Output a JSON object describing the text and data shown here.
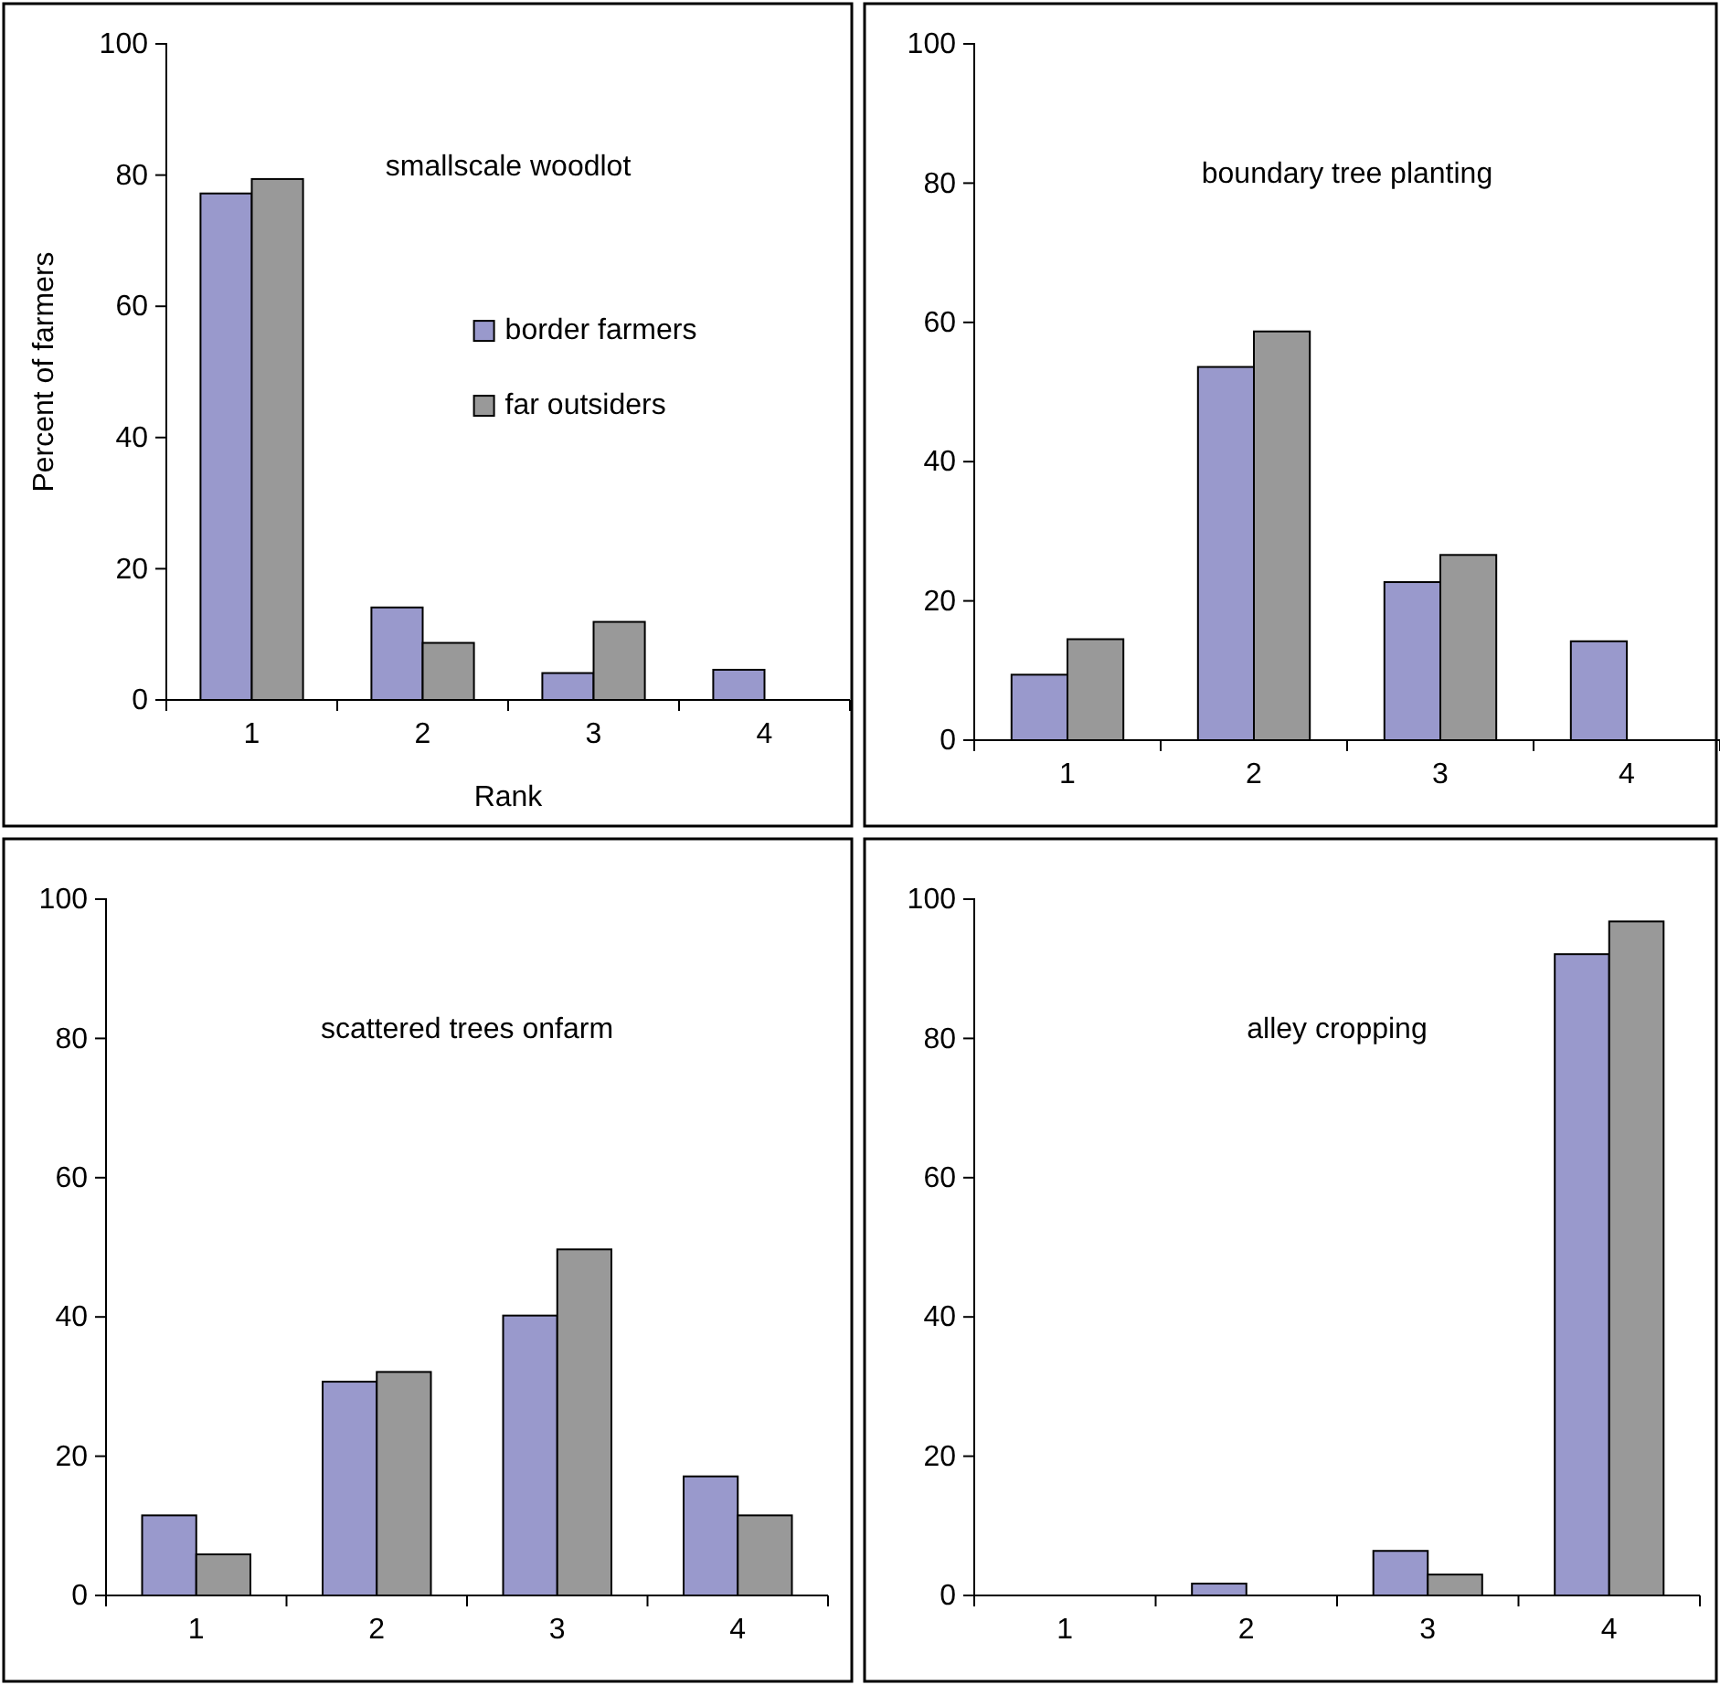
{
  "chart_data": [
    {
      "type": "bar",
      "title": "smallscale woodlot",
      "xlabel": "Rank",
      "ylabel": "Percent of farmers",
      "categories": [
        "1",
        "2",
        "3",
        "4"
      ],
      "series": [
        {
          "name": "border farmers",
          "color": "#9999cc",
          "values": [
            77.2,
            14.1,
            4.1,
            4.6
          ]
        },
        {
          "name": "far outsiders",
          "color": "#999999",
          "values": [
            79.4,
            8.7,
            11.9,
            0
          ]
        }
      ],
      "ylim": [
        0,
        100
      ],
      "yticks": [
        0,
        20,
        40,
        60,
        80,
        100
      ],
      "legend": "right"
    },
    {
      "type": "bar",
      "title": "boundary tree planting",
      "categories": [
        "1",
        "2",
        "3",
        "4"
      ],
      "series": [
        {
          "color": "#9999cc",
          "values": [
            9.4,
            53.6,
            22.7,
            14.2
          ]
        },
        {
          "color": "#999999",
          "values": [
            14.5,
            58.7,
            26.6,
            0
          ]
        }
      ],
      "ylim": [
        0,
        100
      ],
      "yticks": [
        0,
        20,
        40,
        60,
        80,
        100
      ]
    },
    {
      "type": "bar",
      "title": "scattered trees onfarm",
      "categories": [
        "1",
        "2",
        "3",
        "4"
      ],
      "series": [
        {
          "color": "#9999cc",
          "values": [
            11.5,
            30.7,
            40.2,
            17.1
          ]
        },
        {
          "color": "#999999",
          "values": [
            5.9,
            32.1,
            49.7,
            11.5
          ]
        }
      ],
      "ylim": [
        0,
        100
      ],
      "yticks": [
        0,
        20,
        40,
        60,
        80,
        100
      ]
    },
    {
      "type": "bar",
      "title": "alley cropping",
      "categories": [
        "1",
        "2",
        "3",
        "4"
      ],
      "series": [
        {
          "color": "#9999cc",
          "values": [
            0,
            1.7,
            6.4,
            92.1
          ]
        },
        {
          "color": "#999999",
          "values": [
            0,
            0,
            3.0,
            96.8
          ]
        }
      ],
      "ylim": [
        0,
        100
      ],
      "yticks": [
        0,
        20,
        40,
        60,
        80,
        100
      ]
    }
  ]
}
